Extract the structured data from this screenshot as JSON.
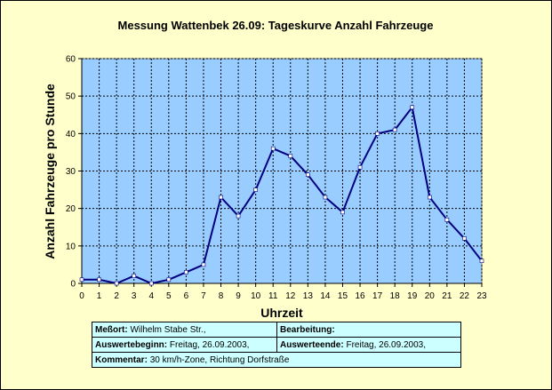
{
  "chart_data": {
    "type": "line",
    "title": "Messung Wattenbek 26.09: Tageskurve Anzahl Fahrzeuge",
    "xlabel": "Uhrzeit",
    "ylabel": "Anzahl Fahrzeuge pro Stunde",
    "x": [
      0,
      1,
      2,
      3,
      4,
      5,
      6,
      7,
      8,
      9,
      10,
      11,
      12,
      13,
      14,
      15,
      16,
      17,
      18,
      19,
      20,
      21,
      22,
      23
    ],
    "values": [
      1,
      1,
      0,
      2,
      0,
      1,
      3,
      5,
      23,
      18,
      25,
      36,
      34,
      29,
      23,
      19,
      31,
      40,
      41,
      47,
      23,
      17,
      12,
      6
    ],
    "ylim": [
      0,
      60
    ],
    "yticks": [
      0,
      10,
      20,
      30,
      40,
      50,
      60
    ],
    "grid": true,
    "legend": "none",
    "colors": {
      "line": "#000080",
      "plot_bg": "#99ccff",
      "frame_bg": "#ffffcc",
      "table_bg": "#ccffff",
      "marker": "#ffffff"
    }
  },
  "info": {
    "messort_label": "Meßort:",
    "messort_value": "Wilhelm Stabe Str.,",
    "bearbeitung_label": "Bearbeitung:",
    "bearbeitung_value": "",
    "beginn_label": "Auswertebeginn:",
    "beginn_value": "Freitag, 26.09.2003,",
    "ende_label": "Auswerteende:",
    "ende_value": "Freitag, 26.09.2003,",
    "kommentar_label": "Kommentar:",
    "kommentar_value": "30 km/h-Zone, Richtung Dorfstraße"
  }
}
